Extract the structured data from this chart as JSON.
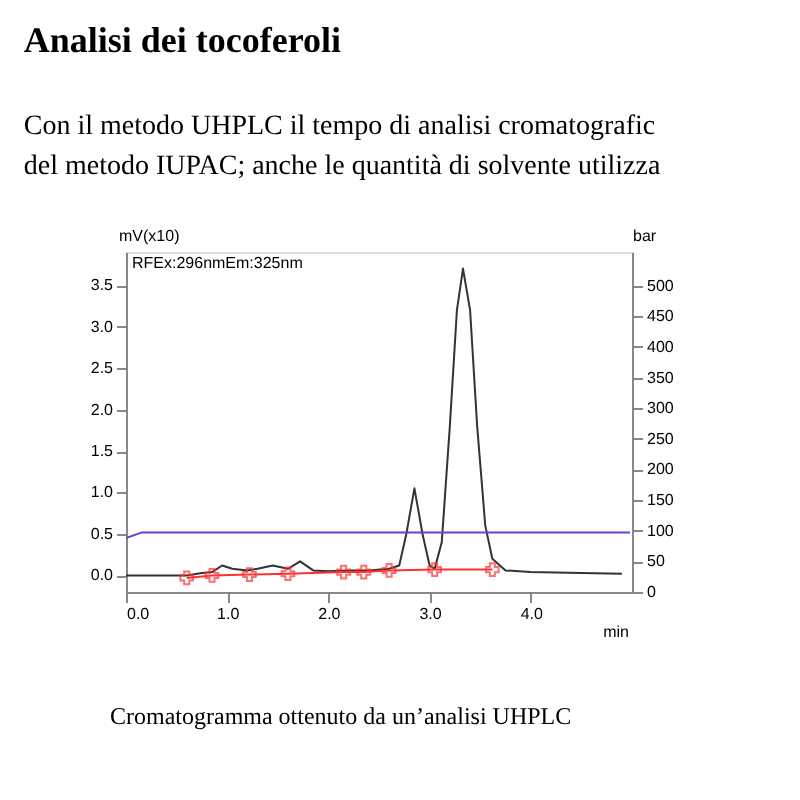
{
  "chart_data": {
    "type": "line",
    "title": "Analisi dei tocoferoli",
    "subtitle": [
      "Con il metodo UHPLC il tempo di analisi cromatografic",
      "del metodo IUPAC; anche le quantità di solvente utilizza"
    ],
    "xlabel": "min",
    "ylabel": "mV(x10)",
    "y2label": "bar",
    "annotations": [
      "RFEx:296nmEm:325nm",
      "Cromatogramma ottenuto da un’analisi UHPLC"
    ],
    "xlim": [
      0,
      5.0
    ],
    "ylim": [
      -0.2,
      3.9
    ],
    "y2lim": [
      0,
      555
    ],
    "xticks": [
      {
        "value": 0,
        "label": "0.0"
      },
      {
        "value": 1,
        "label": "1.0"
      },
      {
        "value": 2,
        "label": "2.0"
      },
      {
        "value": 3,
        "label": "3.0"
      },
      {
        "value": 4,
        "label": "4.0"
      }
    ],
    "yticks": [
      {
        "value": 0,
        "label": "0.0"
      },
      0.5,
      {
        "value": 1,
        "label": "1.0"
      },
      1.5,
      {
        "value": 2,
        "label": "2.0"
      },
      2.5,
      {
        "value": 3,
        "label": "3.0"
      },
      3.5
    ],
    "y2ticks": [
      0,
      50,
      100,
      150,
      200,
      250,
      300,
      350,
      400,
      450,
      500
    ],
    "series": [
      {
        "color": "#333333",
        "x": [
          0,
          0.3,
          0.6,
          0.75,
          0.85,
          0.95,
          1.05,
          1.2,
          1.3,
          1.45,
          1.6,
          1.72,
          1.85,
          2.0,
          2.2,
          2.4,
          2.6,
          2.7,
          2.77,
          2.85,
          2.93,
          3.0,
          3.05,
          3.12,
          3.2,
          3.27,
          3.33,
          3.4,
          3.47,
          3.55,
          3.62,
          3.75,
          4.0,
          4.5,
          4.9
        ],
        "values": [
          0.0,
          0.0,
          0.0,
          0.03,
          0.04,
          0.12,
          0.08,
          0.06,
          0.08,
          0.12,
          0.08,
          0.17,
          0.06,
          0.05,
          0.06,
          0.06,
          0.08,
          0.12,
          0.5,
          1.05,
          0.5,
          0.12,
          0.08,
          0.4,
          1.8,
          3.2,
          3.7,
          3.2,
          1.8,
          0.6,
          0.2,
          0.06,
          0.04,
          0.03,
          0.02
        ]
      },
      {
        "color": "#ff3030",
        "marker": "cross",
        "x": [
          0.6,
          0.85,
          1.22,
          1.6,
          2.15,
          2.35,
          2.6,
          3.05,
          3.62
        ],
        "values": [
          -0.03,
          0.0,
          0.01,
          0.02,
          0.04,
          0.04,
          0.06,
          0.07,
          0.07
        ]
      },
      {
        "color": "#6a3cd8",
        "axis": "y2",
        "x": [
          0,
          0.15,
          4.98
        ],
        "values": [
          88,
          97,
          97
        ]
      }
    ]
  }
}
